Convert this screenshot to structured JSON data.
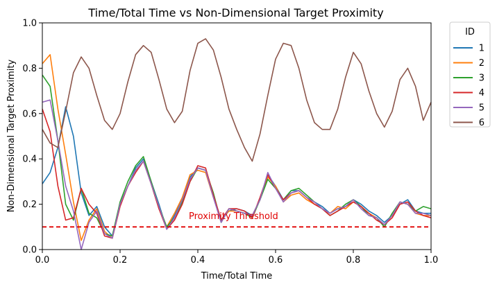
{
  "chart_data": {
    "type": "line",
    "title": "Time/Total Time vs Non-Dimensional Target Proximity",
    "xlabel": "Time/Total Time",
    "ylabel": "Non-Dimensional Target Proximity",
    "xlim": [
      0.0,
      1.0
    ],
    "ylim": [
      0.0,
      1.0
    ],
    "x_ticks": [
      "0.0",
      "0.2",
      "0.4",
      "0.6",
      "0.8",
      "1.0"
    ],
    "y_ticks": [
      "0.0",
      "0.2",
      "0.4",
      "0.6",
      "0.8",
      "1.0"
    ],
    "grid": false,
    "legend": {
      "title": "ID",
      "placement": "outside-top-right"
    },
    "threshold": {
      "y": 0.1,
      "label": "Proximity Threshold",
      "color": "#e00000",
      "style": "dashed"
    },
    "x": [
      0.0,
      0.02,
      0.04,
      0.06,
      0.08,
      0.1,
      0.12,
      0.14,
      0.16,
      0.18,
      0.2,
      0.22,
      0.24,
      0.26,
      0.28,
      0.3,
      0.32,
      0.34,
      0.36,
      0.38,
      0.4,
      0.42,
      0.44,
      0.46,
      0.48,
      0.5,
      0.52,
      0.54,
      0.56,
      0.58,
      0.6,
      0.62,
      0.64,
      0.66,
      0.68,
      0.7,
      0.72,
      0.74,
      0.76,
      0.78,
      0.8,
      0.82,
      0.84,
      0.86,
      0.88,
      0.9,
      0.92,
      0.94,
      0.96,
      0.98,
      1.0
    ],
    "series": [
      {
        "name": "1",
        "color": "#1f77b4",
        "values": [
          0.29,
          0.34,
          0.45,
          0.63,
          0.5,
          0.25,
          0.15,
          0.19,
          0.1,
          0.06,
          0.2,
          0.28,
          0.36,
          0.4,
          0.3,
          0.2,
          0.09,
          0.15,
          0.22,
          0.32,
          0.36,
          0.35,
          0.24,
          0.13,
          0.17,
          0.18,
          0.17,
          0.15,
          0.22,
          0.33,
          0.28,
          0.22,
          0.26,
          0.26,
          0.23,
          0.21,
          0.19,
          0.16,
          0.18,
          0.19,
          0.22,
          0.2,
          0.17,
          0.15,
          0.12,
          0.15,
          0.2,
          0.22,
          0.17,
          0.16,
          0.16
        ]
      },
      {
        "name": "2",
        "color": "#ff7f0e",
        "values": [
          0.82,
          0.86,
          0.62,
          0.42,
          0.21,
          0.04,
          0.13,
          0.18,
          0.08,
          0.05,
          0.2,
          0.28,
          0.35,
          0.39,
          0.29,
          0.18,
          0.1,
          0.16,
          0.23,
          0.33,
          0.35,
          0.34,
          0.23,
          0.13,
          0.17,
          0.17,
          0.16,
          0.15,
          0.22,
          0.32,
          0.28,
          0.21,
          0.24,
          0.25,
          0.22,
          0.2,
          0.18,
          0.16,
          0.19,
          0.18,
          0.21,
          0.19,
          0.16,
          0.14,
          0.11,
          0.15,
          0.21,
          0.2,
          0.16,
          0.15,
          0.15
        ]
      },
      {
        "name": "3",
        "color": "#2ca02c",
        "values": [
          0.77,
          0.72,
          0.48,
          0.2,
          0.13,
          0.27,
          0.16,
          0.14,
          0.07,
          0.06,
          0.21,
          0.3,
          0.37,
          0.41,
          0.3,
          0.19,
          0.1,
          0.14,
          0.21,
          0.3,
          0.36,
          0.35,
          0.25,
          0.12,
          0.18,
          0.17,
          0.16,
          0.14,
          0.22,
          0.31,
          0.27,
          0.22,
          0.26,
          0.27,
          0.24,
          0.21,
          0.18,
          0.15,
          0.17,
          0.2,
          0.22,
          0.19,
          0.15,
          0.14,
          0.1,
          0.16,
          0.21,
          0.2,
          0.17,
          0.19,
          0.18
        ]
      },
      {
        "name": "4",
        "color": "#d62728",
        "values": [
          0.62,
          0.52,
          0.28,
          0.13,
          0.14,
          0.27,
          0.2,
          0.16,
          0.06,
          0.05,
          0.19,
          0.28,
          0.34,
          0.39,
          0.29,
          0.18,
          0.09,
          0.13,
          0.2,
          0.3,
          0.37,
          0.36,
          0.24,
          0.13,
          0.18,
          0.18,
          0.17,
          0.14,
          0.23,
          0.33,
          0.27,
          0.22,
          0.25,
          0.26,
          0.23,
          0.2,
          0.18,
          0.15,
          0.17,
          0.19,
          0.21,
          0.19,
          0.16,
          0.13,
          0.11,
          0.14,
          0.2,
          0.21,
          0.17,
          0.15,
          0.14
        ]
      },
      {
        "name": "5",
        "color": "#9467bd",
        "values": [
          0.65,
          0.66,
          0.48,
          0.28,
          0.17,
          0.0,
          0.12,
          0.17,
          0.07,
          0.05,
          0.2,
          0.28,
          0.35,
          0.39,
          0.29,
          0.19,
          0.09,
          0.14,
          0.22,
          0.31,
          0.36,
          0.35,
          0.23,
          0.12,
          0.18,
          0.17,
          0.16,
          0.15,
          0.22,
          0.34,
          0.27,
          0.21,
          0.25,
          0.26,
          0.23,
          0.21,
          0.18,
          0.16,
          0.18,
          0.19,
          0.22,
          0.18,
          0.15,
          0.14,
          0.11,
          0.15,
          0.21,
          0.2,
          0.16,
          0.16,
          0.15
        ]
      },
      {
        "name": "6",
        "color": "#8c564b",
        "values": [
          0.53,
          0.47,
          0.45,
          0.61,
          0.78,
          0.85,
          0.8,
          0.68,
          0.57,
          0.53,
          0.6,
          0.74,
          0.86,
          0.9,
          0.87,
          0.75,
          0.62,
          0.56,
          0.61,
          0.79,
          0.91,
          0.93,
          0.88,
          0.76,
          0.62,
          0.53,
          0.45,
          0.39,
          0.51,
          0.68,
          0.84,
          0.91,
          0.9,
          0.8,
          0.66,
          0.56,
          0.53,
          0.53,
          0.62,
          0.76,
          0.87,
          0.82,
          0.7,
          0.6,
          0.54,
          0.61,
          0.75,
          0.8,
          0.72,
          0.57,
          0.65
        ]
      }
    ]
  }
}
